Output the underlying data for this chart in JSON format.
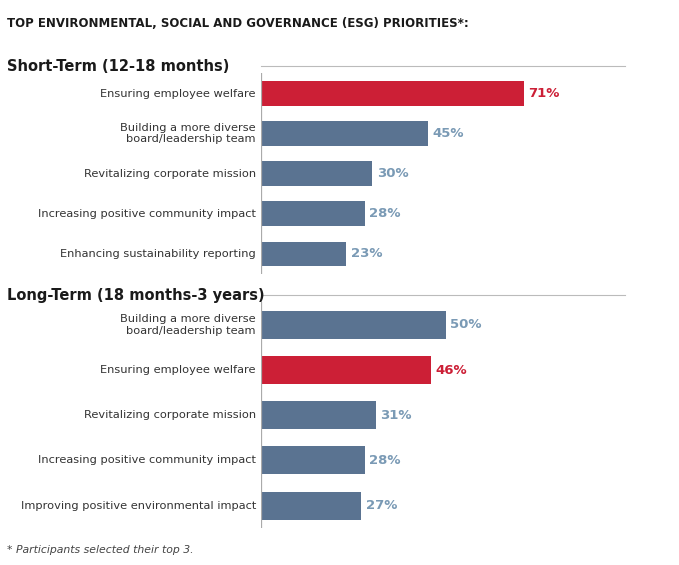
{
  "title": "TOP ENVIRONMENTAL, SOCIAL AND GOVERNANCE (ESG) PRIORITIES*:",
  "footnote": "* Participants selected their top 3.",
  "short_term_label": "Short-Term (12-18 months)",
  "long_term_label": "Long-Term (18 months-3 years)",
  "short_term": {
    "labels": [
      "Ensuring employee welfare",
      "Building a more diverse\nboard/leadership team",
      "Revitalizing corporate mission",
      "Increasing positive community impact",
      "Enhancing sustainability reporting"
    ],
    "values": [
      71,
      45,
      30,
      28,
      23
    ],
    "colors": [
      "#cc1f36",
      "#5a7391",
      "#5a7391",
      "#5a7391",
      "#5a7391"
    ]
  },
  "long_term": {
    "labels": [
      "Building a more diverse\nboard/leadership team",
      "Ensuring employee welfare",
      "Revitalizing corporate mission",
      "Increasing positive community impact",
      "Improving positive environmental impact"
    ],
    "values": [
      50,
      46,
      31,
      28,
      27
    ],
    "colors": [
      "#5a7391",
      "#cc1f36",
      "#5a7391",
      "#5a7391",
      "#5a7391"
    ]
  },
  "bar_color_default": "#5a7391",
  "bar_color_highlight": "#cc1f36",
  "value_color_default": "#7a9ab5",
  "value_color_highlight": "#cc1f36",
  "background_color": "#ffffff",
  "title_color": "#1a1a1a",
  "section_label_color": "#1a1a1a",
  "bar_label_color": "#333333",
  "xlim": [
    0,
    80
  ],
  "bar_height": 0.62,
  "label_fontsize": 8.2,
  "value_fontsize": 9.5,
  "title_fontsize": 8.5,
  "section_fontsize": 10.5,
  "footnote_fontsize": 7.8
}
